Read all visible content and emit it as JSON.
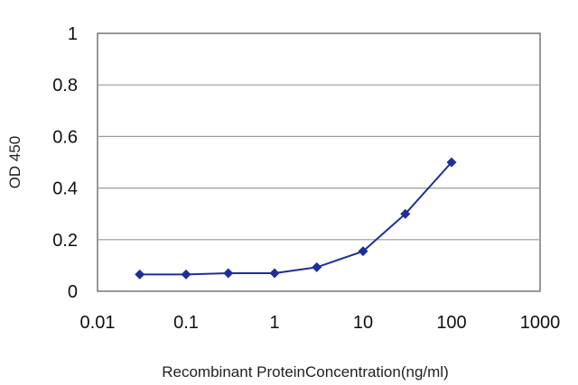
{
  "chart_data": {
    "type": "line",
    "xscale": "log",
    "xlim": [
      0.01,
      1000
    ],
    "ylim": [
      0,
      1
    ],
    "xlabel": "Recombinant ProteinConcentration(ng/ml)",
    "ylabel": "OD 450",
    "xticks": [
      "0.01",
      "0.1",
      "1",
      "10",
      "100",
      "1000"
    ],
    "yticks": [
      "0",
      "0.2",
      "0.4",
      "0.6",
      "0.8",
      "1"
    ],
    "grid": "horizontal",
    "legend": "none",
    "series": [
      {
        "color": "#1f2f99",
        "x": [
          0.03,
          0.1,
          0.3,
          1,
          3,
          10,
          30,
          100
        ],
        "y": [
          0.065,
          0.065,
          0.07,
          0.07,
          0.093,
          0.155,
          0.3,
          0.5
        ]
      }
    ]
  }
}
